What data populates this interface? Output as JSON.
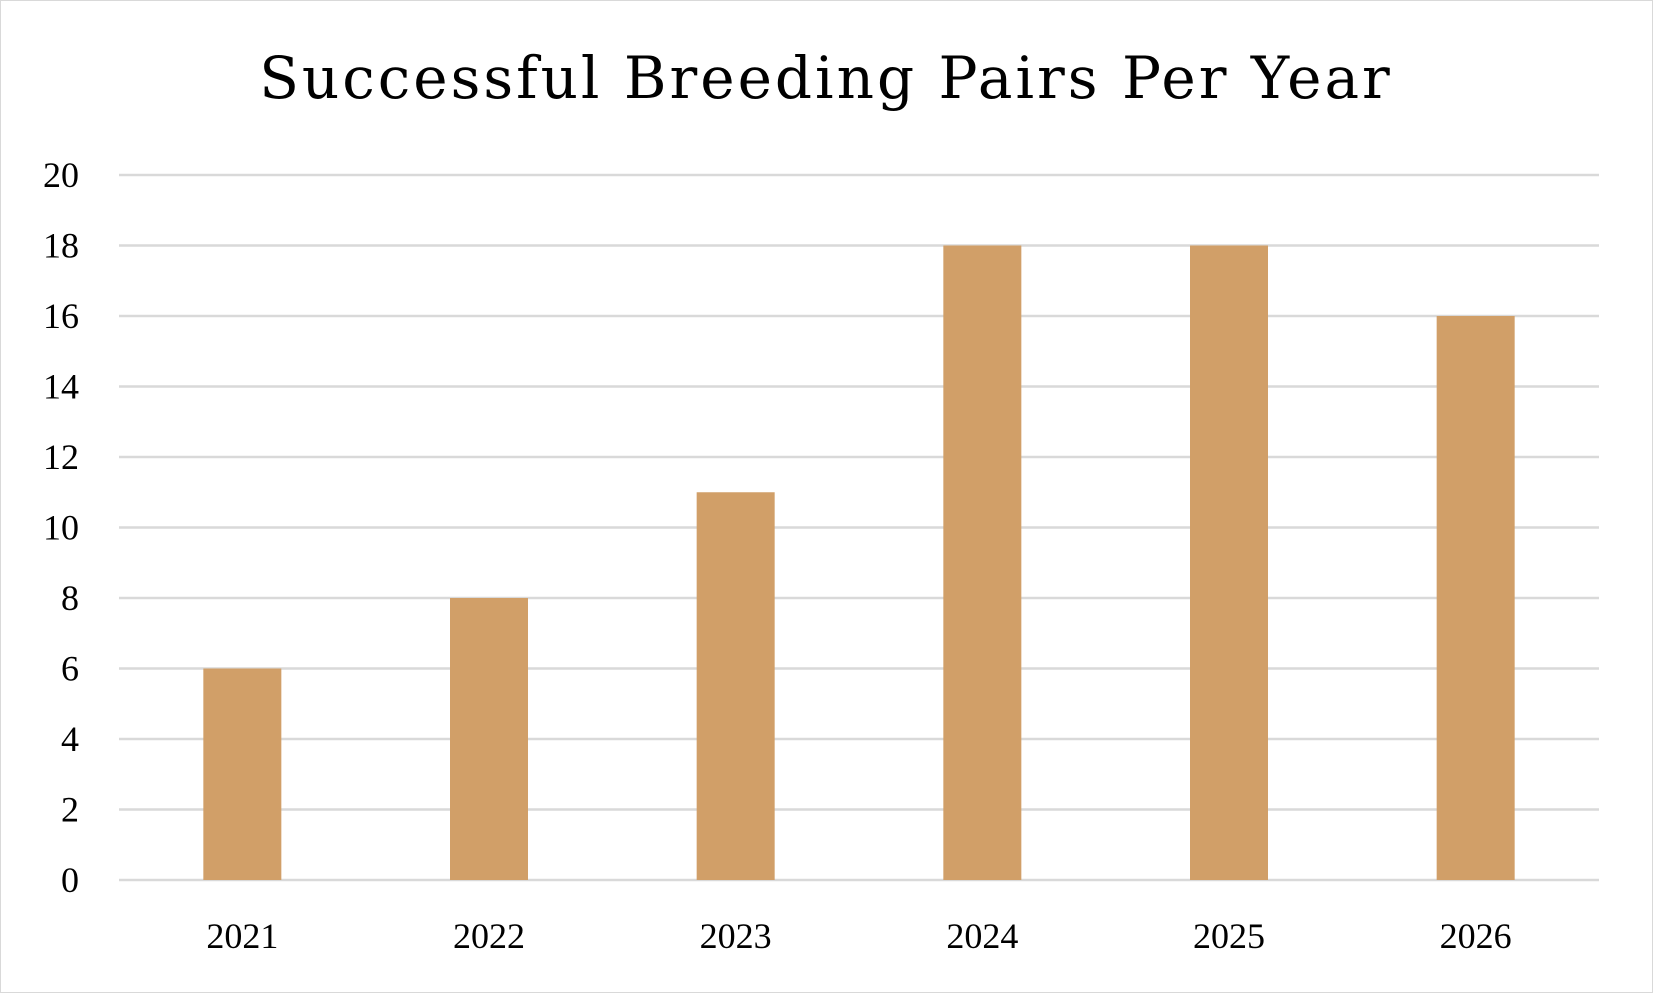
{
  "chart_data": {
    "type": "bar",
    "title": "Successful Breeding Pairs Per Year",
    "xlabel": "",
    "ylabel": "",
    "categories": [
      "2021",
      "2022",
      "2023",
      "2024",
      "2025",
      "2026"
    ],
    "values": [
      6,
      8,
      11,
      18,
      18,
      16
    ],
    "ylim": [
      0,
      20
    ],
    "yticks": [
      0,
      2,
      4,
      6,
      8,
      10,
      12,
      14,
      16,
      18,
      20
    ],
    "grid": true,
    "legend": "none",
    "bar_color": "#D19F68",
    "grid_color": "#D9D9D9"
  }
}
